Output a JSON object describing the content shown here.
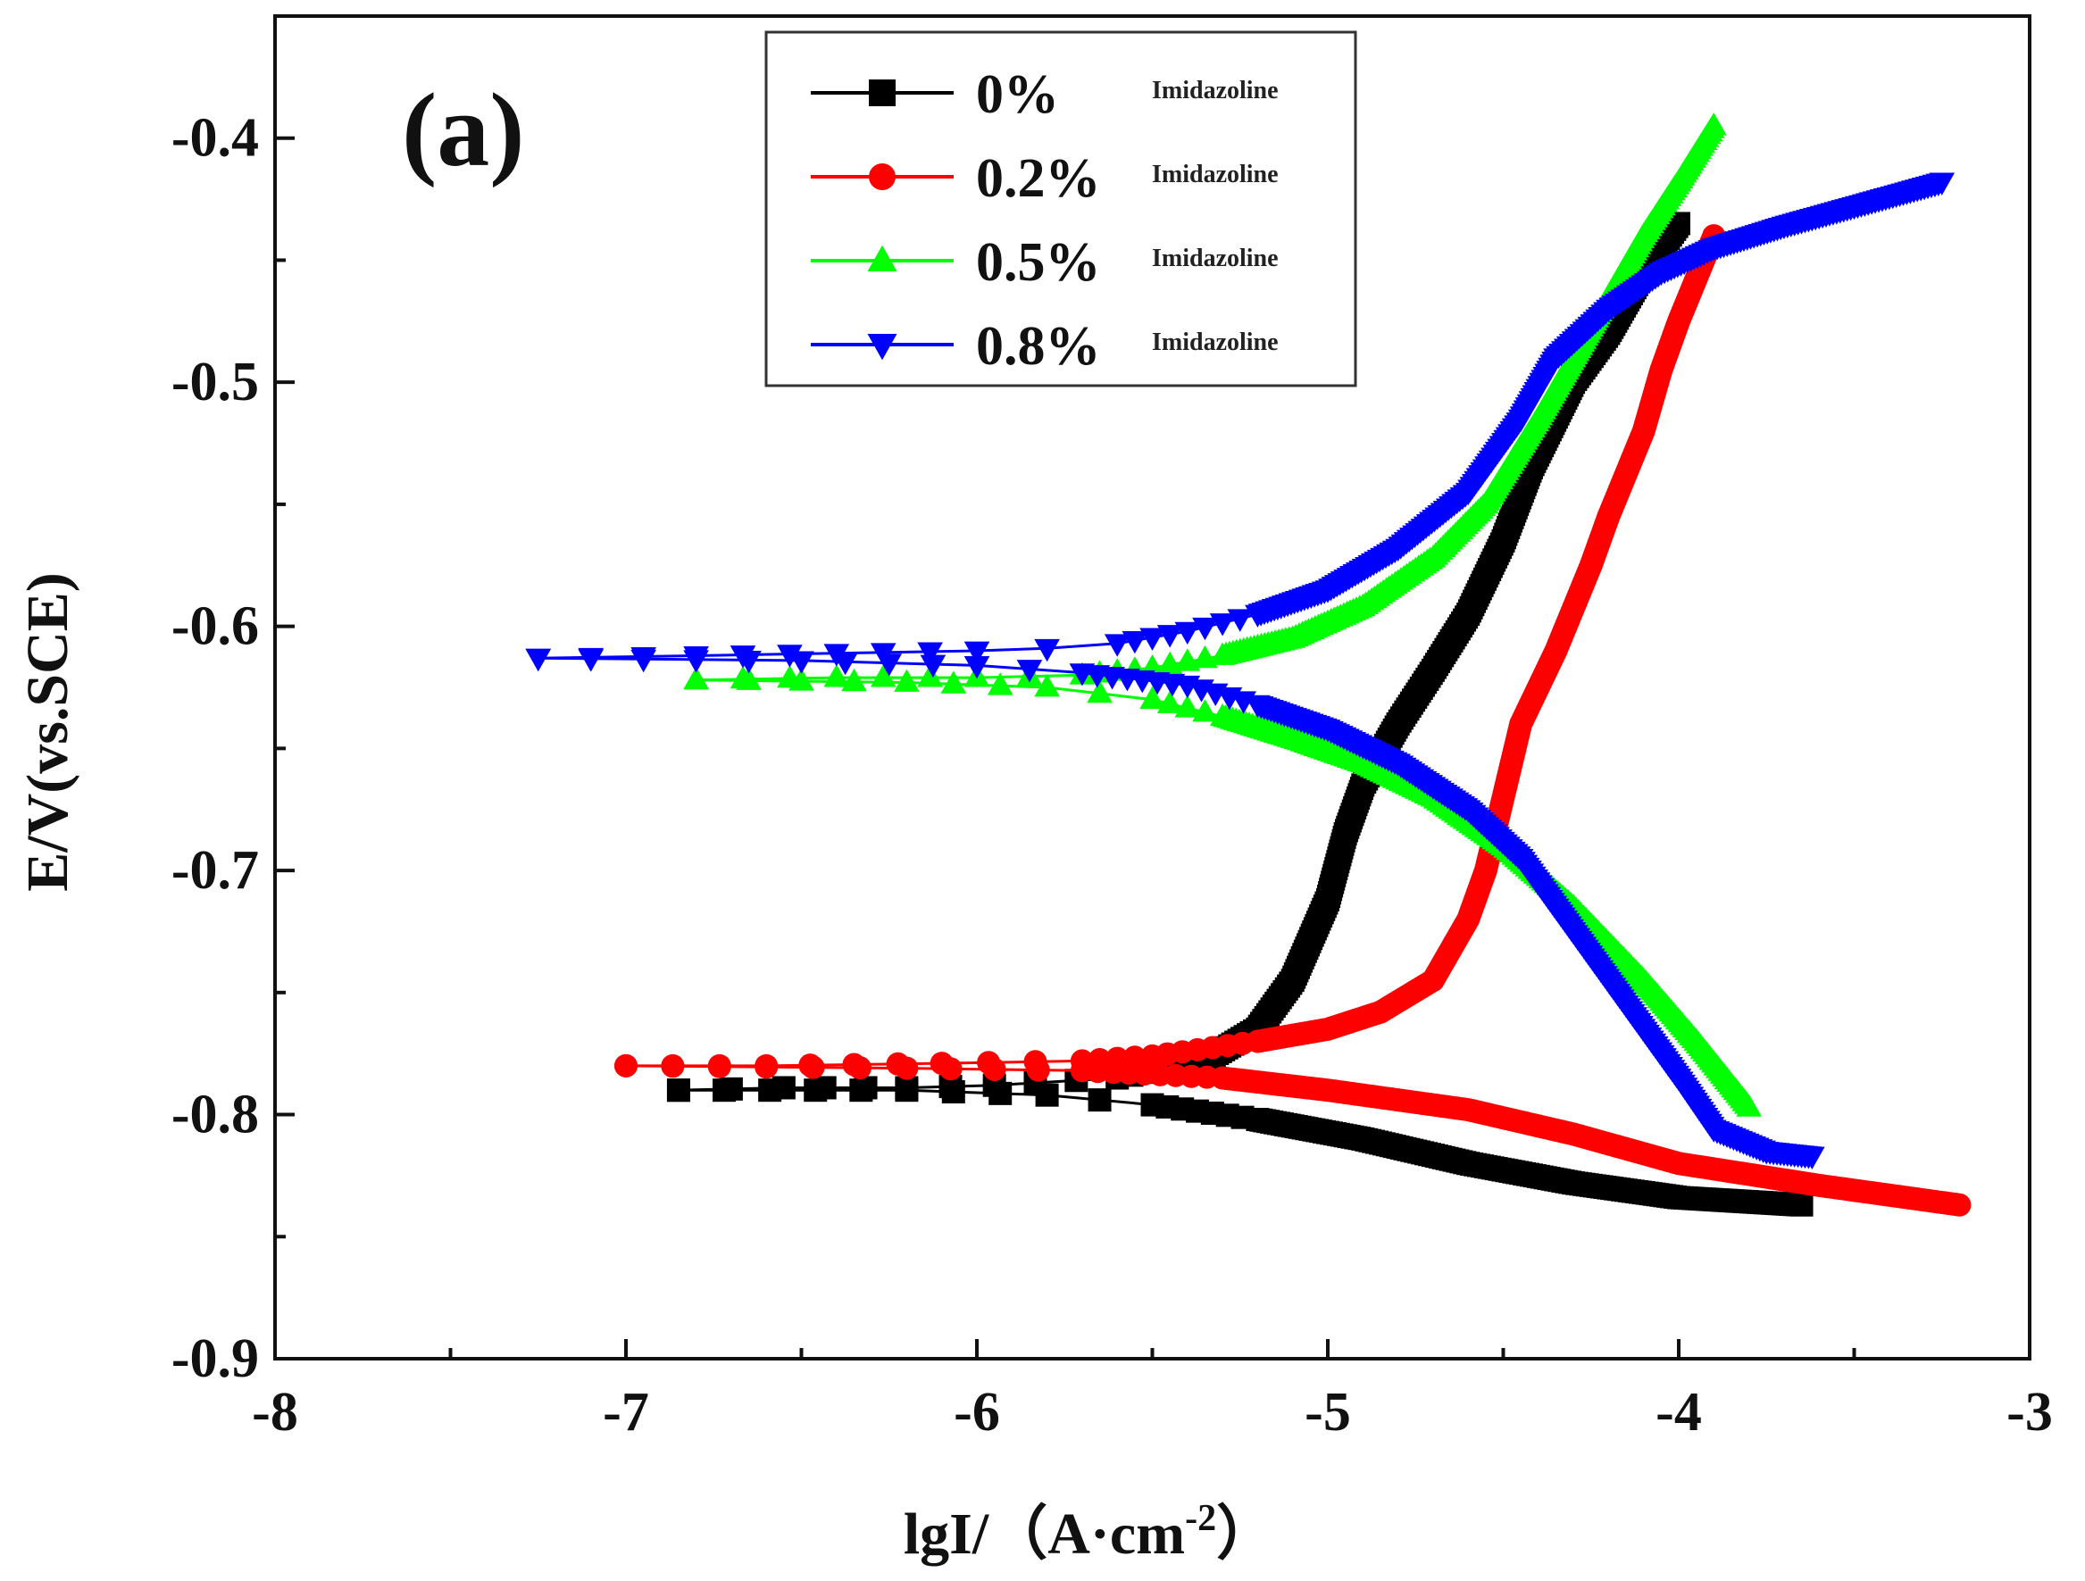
{
  "chart_data": {
    "type": "line",
    "panel_label": "(a)",
    "xlabel": "lgI/（A·cm",
    "xlabel_sup": "-2",
    "xlabel_close": "）",
    "ylabel": "E/V(vs.SCE)",
    "xlim": [
      -8,
      -3
    ],
    "ylim": [
      -0.9,
      -0.35
    ],
    "x_ticks": [
      -8,
      -7,
      -6,
      -5,
      -4,
      -3
    ],
    "x_tick_labels": [
      "-8",
      "-7",
      "-6",
      "-5",
      "-4",
      "-3"
    ],
    "y_ticks": [
      -0.9,
      -0.8,
      -0.7,
      -0.6,
      -0.5,
      -0.4
    ],
    "y_tick_labels": [
      "-0.9",
      "-0.8",
      "-0.7",
      "-0.6",
      "-0.5",
      "-0.4"
    ],
    "legend_position": "top-center",
    "series": [
      {
        "name": "0%",
        "suffix": "Imidazoline",
        "color": "#000000",
        "marker": "square",
        "anodic": [
          [
            -6.85,
            -0.79
          ],
          [
            -6.55,
            -0.789
          ],
          [
            -6.2,
            -0.789
          ],
          [
            -5.95,
            -0.788
          ],
          [
            -5.6,
            -0.785
          ],
          [
            -5.35,
            -0.778
          ],
          [
            -5.2,
            -0.765
          ],
          [
            -5.1,
            -0.745
          ],
          [
            -5.0,
            -0.712
          ],
          [
            -4.95,
            -0.685
          ],
          [
            -4.9,
            -0.665
          ],
          [
            -4.8,
            -0.64
          ],
          [
            -4.7,
            -0.618
          ],
          [
            -4.6,
            -0.595
          ],
          [
            -4.5,
            -0.565
          ],
          [
            -4.42,
            -0.535
          ],
          [
            -4.3,
            -0.5
          ],
          [
            -4.2,
            -0.48
          ],
          [
            -4.1,
            -0.455
          ],
          [
            -4.0,
            -0.435
          ]
        ],
        "cathodic": [
          [
            -6.85,
            -0.79
          ],
          [
            -6.2,
            -0.79
          ],
          [
            -5.8,
            -0.792
          ],
          [
            -5.5,
            -0.796
          ],
          [
            -5.2,
            -0.802
          ],
          [
            -4.9,
            -0.81
          ],
          [
            -4.6,
            -0.82
          ],
          [
            -4.3,
            -0.828
          ],
          [
            -4.0,
            -0.834
          ],
          [
            -3.65,
            -0.837
          ]
        ]
      },
      {
        "name": "0.2%",
        "suffix": "Imidazoline",
        "color": "#ff0000",
        "marker": "circle",
        "anodic": [
          [
            -7.0,
            -0.78
          ],
          [
            -6.6,
            -0.78
          ],
          [
            -6.1,
            -0.779
          ],
          [
            -5.7,
            -0.778
          ],
          [
            -5.5,
            -0.776
          ],
          [
            -5.2,
            -0.77
          ],
          [
            -5.0,
            -0.765
          ],
          [
            -4.85,
            -0.758
          ],
          [
            -4.7,
            -0.745
          ],
          [
            -4.6,
            -0.72
          ],
          [
            -4.55,
            -0.7
          ],
          [
            -4.5,
            -0.67
          ],
          [
            -4.45,
            -0.64
          ],
          [
            -4.35,
            -0.61
          ],
          [
            -4.25,
            -0.575
          ],
          [
            -4.2,
            -0.555
          ],
          [
            -4.1,
            -0.52
          ],
          [
            -4.05,
            -0.495
          ],
          [
            -4.0,
            -0.475
          ],
          [
            -3.9,
            -0.44
          ]
        ],
        "cathodic": [
          [
            -7.0,
            -0.78
          ],
          [
            -6.2,
            -0.781
          ],
          [
            -5.7,
            -0.782
          ],
          [
            -5.3,
            -0.785
          ],
          [
            -5.0,
            -0.79
          ],
          [
            -4.6,
            -0.798
          ],
          [
            -4.3,
            -0.808
          ],
          [
            -4.0,
            -0.82
          ],
          [
            -3.6,
            -0.829
          ],
          [
            -3.2,
            -0.837
          ]
        ]
      },
      {
        "name": "0.5%",
        "suffix": "Imidazoline",
        "color": "#00ff00",
        "marker": "triangle-up",
        "anodic": [
          [
            -6.8,
            -0.622
          ],
          [
            -6.4,
            -0.621
          ],
          [
            -6.0,
            -0.621
          ],
          [
            -5.7,
            -0.62
          ],
          [
            -5.5,
            -0.617
          ],
          [
            -5.3,
            -0.612
          ],
          [
            -5.1,
            -0.605
          ],
          [
            -4.9,
            -0.592
          ],
          [
            -4.7,
            -0.572
          ],
          [
            -4.55,
            -0.55
          ],
          [
            -4.4,
            -0.515
          ],
          [
            -4.3,
            -0.49
          ],
          [
            -4.2,
            -0.465
          ],
          [
            -4.1,
            -0.44
          ],
          [
            -4.0,
            -0.418
          ],
          [
            -3.9,
            -0.395
          ]
        ],
        "cathodic": [
          [
            -6.8,
            -0.622
          ],
          [
            -6.2,
            -0.623
          ],
          [
            -5.8,
            -0.625
          ],
          [
            -5.5,
            -0.63
          ],
          [
            -5.3,
            -0.637
          ],
          [
            -5.1,
            -0.646
          ],
          [
            -4.9,
            -0.656
          ],
          [
            -4.7,
            -0.67
          ],
          [
            -4.5,
            -0.69
          ],
          [
            -4.3,
            -0.715
          ],
          [
            -4.1,
            -0.745
          ],
          [
            -3.95,
            -0.77
          ],
          [
            -3.8,
            -0.797
          ]
        ]
      },
      {
        "name": "0.8%",
        "suffix": "Imidazoline",
        "color": "#0000ff",
        "marker": "triangle-down",
        "anodic": [
          [
            -7.25,
            -0.613
          ],
          [
            -6.8,
            -0.612
          ],
          [
            -6.4,
            -0.611
          ],
          [
            -6.0,
            -0.61
          ],
          [
            -5.8,
            -0.609
          ],
          [
            -5.6,
            -0.607
          ],
          [
            -5.4,
            -0.602
          ],
          [
            -5.2,
            -0.595
          ],
          [
            -5.0,
            -0.585
          ],
          [
            -4.8,
            -0.568
          ],
          [
            -4.6,
            -0.545
          ],
          [
            -4.45,
            -0.515
          ],
          [
            -4.35,
            -0.49
          ],
          [
            -4.2,
            -0.47
          ],
          [
            -4.05,
            -0.455
          ],
          [
            -3.9,
            -0.445
          ],
          [
            -3.7,
            -0.436
          ],
          [
            -3.5,
            -0.428
          ],
          [
            -3.25,
            -0.418
          ]
        ],
        "cathodic": [
          [
            -7.25,
            -0.613
          ],
          [
            -6.5,
            -0.614
          ],
          [
            -6.0,
            -0.616
          ],
          [
            -5.7,
            -0.619
          ],
          [
            -5.4,
            -0.624
          ],
          [
            -5.2,
            -0.632
          ],
          [
            -5.0,
            -0.642
          ],
          [
            -4.8,
            -0.656
          ],
          [
            -4.6,
            -0.675
          ],
          [
            -4.45,
            -0.695
          ],
          [
            -4.3,
            -0.725
          ],
          [
            -4.15,
            -0.755
          ],
          [
            -4.0,
            -0.785
          ],
          [
            -3.9,
            -0.806
          ],
          [
            -3.75,
            -0.815
          ],
          [
            -3.62,
            -0.817
          ]
        ]
      }
    ]
  }
}
